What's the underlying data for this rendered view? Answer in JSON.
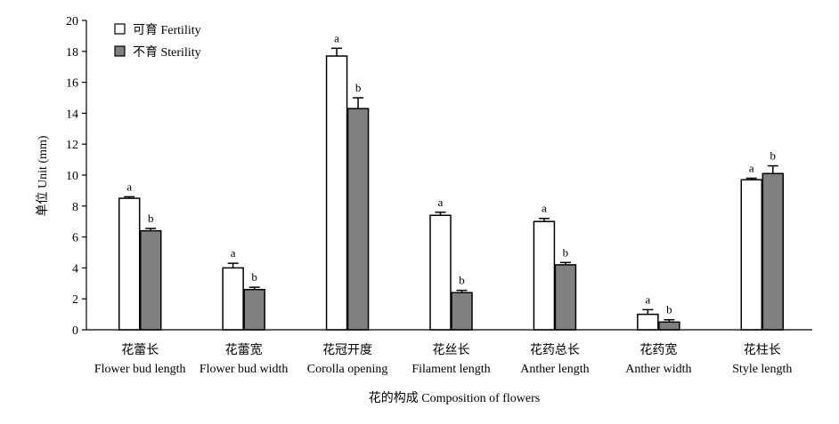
{
  "chart_data": {
    "type": "bar",
    "ylabel": "单位 Unit (mm)",
    "xlabel": "花的构成 Composition of flowers",
    "ylim": [
      0,
      20
    ],
    "yticks": [
      0,
      2,
      4,
      6,
      8,
      10,
      12,
      14,
      16,
      18,
      20
    ],
    "categories": [
      {
        "zh": "花蕾长",
        "en": "Flower bud length"
      },
      {
        "zh": "花蕾宽",
        "en": "Flower bud width"
      },
      {
        "zh": "花冠开度",
        "en": "Corolla opening"
      },
      {
        "zh": "花丝长",
        "en": "Filament length"
      },
      {
        "zh": "花药总长",
        "en": "Anther length"
      },
      {
        "zh": "花药宽",
        "en": "Anther width"
      },
      {
        "zh": "花柱长",
        "en": "Style length"
      }
    ],
    "series": [
      {
        "name": "可育 Fertility",
        "color": "#ffffff",
        "values": [
          8.5,
          4.0,
          17.7,
          7.4,
          7.0,
          1.0,
          9.7
        ],
        "errors": [
          0.1,
          0.3,
          0.5,
          0.2,
          0.2,
          0.3,
          0.1
        ],
        "labels": [
          "a",
          "a",
          "a",
          "a",
          "a",
          "a",
          "a"
        ]
      },
      {
        "name": "不育 Sterility",
        "color": "#808080",
        "values": [
          6.4,
          2.6,
          14.3,
          2.4,
          4.2,
          0.5,
          10.1
        ],
        "errors": [
          0.15,
          0.15,
          0.7,
          0.15,
          0.15,
          0.15,
          0.5
        ],
        "labels": [
          "b",
          "b",
          "b",
          "b",
          "b",
          "b",
          "b"
        ]
      }
    ],
    "legend_position": "top-left"
  }
}
